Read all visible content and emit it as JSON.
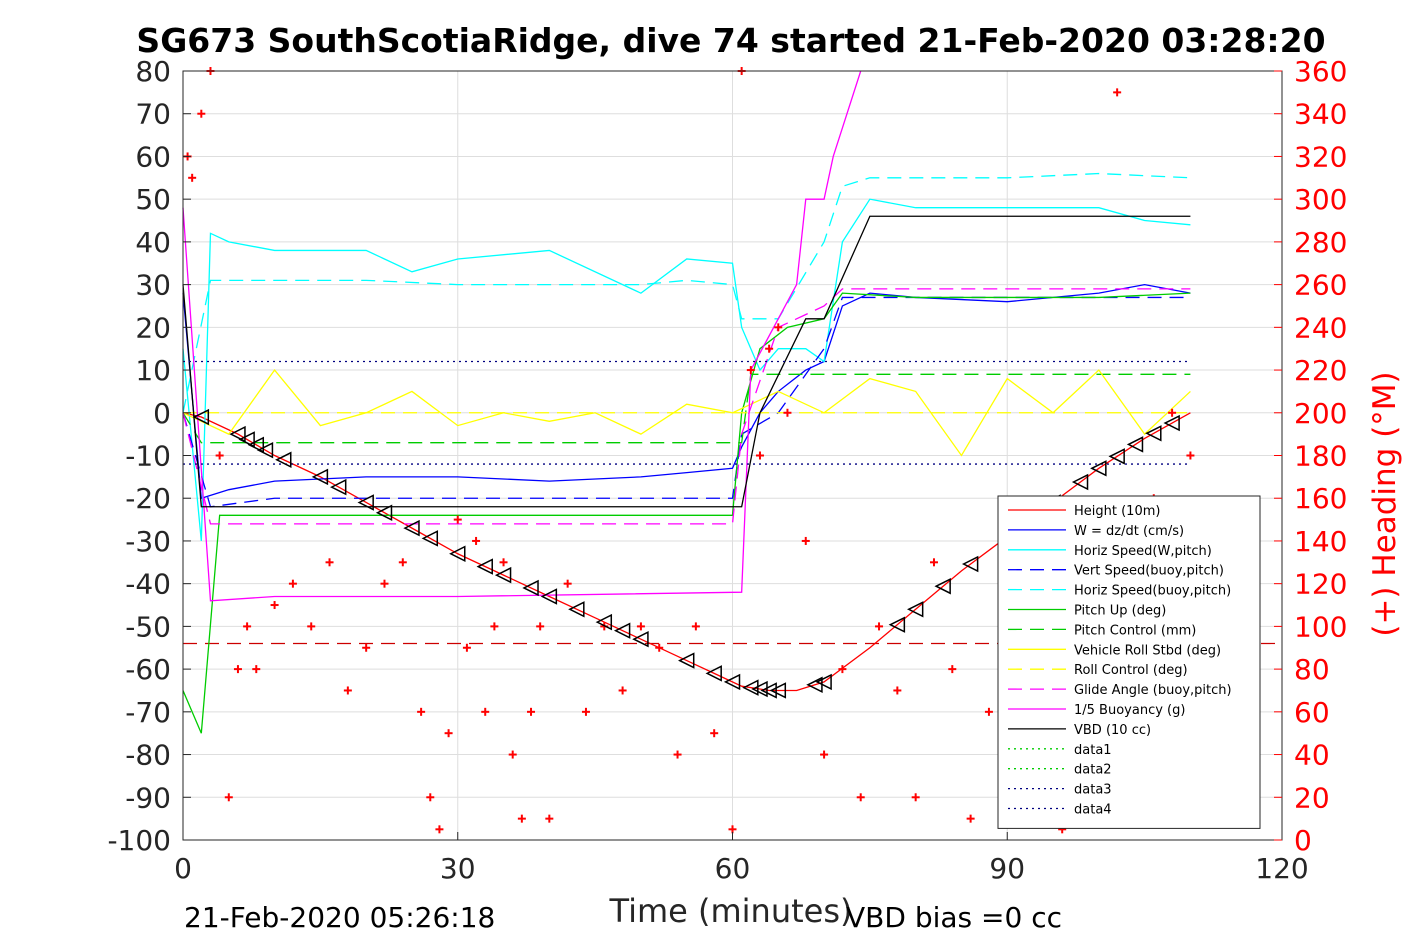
{
  "chart_data": {
    "type": "line",
    "title": "SG673 SouthScotiaRidge, dive 74 started 21-Feb-2020 03:28:20",
    "xlabel": "Time (minutes)",
    "ylabel_right": "(+) Heading (°M)",
    "xlim": [
      0,
      120
    ],
    "ylim_left": [
      -100,
      80
    ],
    "ylim_right": [
      0,
      360
    ],
    "x_ticks": [
      "0",
      "30",
      "60",
      "90",
      "120"
    ],
    "y_ticks_left": [
      "80",
      "70",
      "60",
      "50",
      "40",
      "30",
      "20",
      "10",
      "0",
      "-10",
      "-20",
      "-30",
      "-40",
      "-50",
      "-60",
      "-70",
      "-80",
      "-90",
      "-100"
    ],
    "y_ticks_right": [
      "360",
      "340",
      "320",
      "300",
      "280",
      "260",
      "240",
      "220",
      "200",
      "180",
      "160",
      "140",
      "120",
      "100",
      "80",
      "60",
      "40",
      "20",
      "0"
    ],
    "grid": true,
    "legend_position": "bottom-right",
    "footer_left": "21-Feb-2020 05:26:18",
    "footer_right": "VBD bias =0 cc",
    "series": [
      {
        "name": "Height (10m)",
        "color": "#ff0000",
        "style": "solid",
        "x": [
          0,
          2,
          6,
          10,
          15,
          20,
          25,
          30,
          35,
          40,
          45,
          50,
          55,
          58,
          61,
          64,
          67,
          70,
          75,
          80,
          85,
          90,
          95,
          100,
          105,
          110
        ],
        "y": [
          0,
          -1,
          -5,
          -10,
          -15,
          -21,
          -27,
          -33,
          -38,
          -43,
          -48,
          -53,
          -58,
          -61,
          -64,
          -65,
          -65,
          -63,
          -55,
          -46,
          -37,
          -29,
          -21,
          -13,
          -6,
          0
        ]
      },
      {
        "name": "W = dz/dt (cm/s)",
        "color": "#0000ff",
        "style": "solid",
        "x": [
          0,
          2,
          5,
          10,
          20,
          30,
          40,
          50,
          55,
          60,
          61,
          63,
          65,
          68,
          70,
          72,
          75,
          80,
          90,
          100,
          105,
          110
        ],
        "y": [
          28,
          -20,
          -18,
          -16,
          -15,
          -15,
          -16,
          -15,
          -14,
          -13,
          -8,
          0,
          5,
          10,
          12,
          25,
          28,
          27,
          26,
          28,
          30,
          28
        ]
      },
      {
        "name": "Horiz Speed(W,pitch)",
        "color": "#00ffff",
        "style": "solid",
        "x": [
          0,
          2,
          3,
          5,
          10,
          20,
          25,
          30,
          40,
          50,
          55,
          60,
          61,
          63,
          65,
          68,
          70,
          72,
          75,
          80,
          90,
          100,
          105,
          110
        ],
        "y": [
          15,
          -30,
          42,
          40,
          38,
          38,
          33,
          36,
          38,
          28,
          36,
          35,
          20,
          10,
          15,
          15,
          12,
          40,
          50,
          48,
          48,
          48,
          45,
          44
        ]
      },
      {
        "name": "Vert Speed(buoy,pitch)",
        "color": "#0000ff",
        "style": "dashed",
        "x": [
          0,
          3,
          10,
          30,
          60,
          61,
          65,
          70,
          72,
          110
        ],
        "y": [
          0,
          -22,
          -20,
          -20,
          -20,
          -5,
          0,
          15,
          27,
          27
        ]
      },
      {
        "name": "Horiz Speed(buoy,pitch)",
        "color": "#00ffff",
        "style": "dashed",
        "x": [
          0,
          3,
          5,
          20,
          30,
          40,
          50,
          55,
          60,
          61,
          65,
          70,
          72,
          75,
          80,
          90,
          100,
          110
        ],
        "y": [
          0,
          31,
          31,
          31,
          30,
          30,
          30,
          31,
          30,
          22,
          22,
          40,
          53,
          55,
          55,
          55,
          56,
          55
        ]
      },
      {
        "name": "Pitch Up (deg)",
        "color": "#00cc00",
        "style": "solid",
        "x": [
          0,
          2,
          4,
          10,
          20,
          30,
          40,
          50,
          60,
          61,
          63,
          66,
          70,
          72,
          80,
          90,
          100,
          110
        ],
        "y": [
          -65,
          -75,
          -24,
          -24,
          -24,
          -24,
          -24,
          -24,
          -24,
          0,
          15,
          20,
          22,
          28,
          27,
          27,
          27,
          28
        ]
      },
      {
        "name": "Pitch Control (mm)",
        "color": "#00cc00",
        "style": "dashed",
        "x": [
          0,
          2,
          61,
          62,
          110
        ],
        "y": [
          0,
          -7,
          -7,
          9,
          9
        ]
      },
      {
        "name": "Vehicle Roll Stbd (deg)",
        "color": "#ffff00",
        "style": "solid",
        "x": [
          0,
          5,
          10,
          15,
          20,
          25,
          30,
          35,
          40,
          45,
          50,
          55,
          60,
          65,
          70,
          75,
          80,
          85,
          90,
          95,
          100,
          105,
          110
        ],
        "y": [
          0,
          -5,
          10,
          -3,
          0,
          5,
          -3,
          0,
          -2,
          0,
          -5,
          2,
          0,
          5,
          0,
          8,
          5,
          -10,
          8,
          0,
          10,
          -5,
          5
        ]
      },
      {
        "name": "Roll Control (deg)",
        "color": "#ffff00",
        "style": "dashed",
        "x": [
          0,
          110
        ],
        "y": [
          0,
          0
        ]
      },
      {
        "name": "Glide Angle (buoy,pitch)",
        "color": "#ff00ff",
        "style": "dashed",
        "x": [
          0,
          3,
          10,
          30,
          60,
          61,
          65,
          70,
          72,
          110
        ],
        "y": [
          0,
          -26,
          -26,
          -26,
          -26,
          -5,
          20,
          25,
          29,
          29
        ]
      },
      {
        "name": "1/5 Buoyancy (g)",
        "color": "#ff00ff",
        "style": "solid",
        "x": [
          0,
          3,
          10,
          30,
          61,
          62,
          67,
          68,
          70,
          71,
          74
        ],
        "y": [
          48,
          -44,
          -43,
          -43,
          -42,
          10,
          30,
          50,
          50,
          60,
          80
        ]
      },
      {
        "name": "VBD (10 cc)",
        "color": "#000000",
        "style": "solid",
        "x": [
          0,
          2,
          61,
          63,
          68,
          70,
          75,
          110
        ],
        "y": [
          30,
          -22,
          -22,
          0,
          22,
          22,
          46,
          46
        ]
      },
      {
        "name": "data1",
        "color": "#00cc00",
        "style": "dotted",
        "x": [],
        "y": []
      },
      {
        "name": "data2",
        "color": "#00cc00",
        "style": "dotted",
        "x": [],
        "y": []
      },
      {
        "name": "data3",
        "color": "#000080",
        "style": "dotted",
        "x": [
          0,
          110
        ],
        "y": [
          12,
          12
        ]
      },
      {
        "name": "data4",
        "color": "#000080",
        "style": "dotted",
        "x": [
          0,
          110
        ],
        "y": [
          -12,
          -12
        ]
      }
    ],
    "extra_lines": [
      {
        "color": "#cc0000",
        "style": "dashed",
        "x": [
          0,
          120
        ],
        "y": [
          -54,
          -54
        ]
      }
    ],
    "heading": {
      "color": "#ff0000",
      "marker": "+",
      "axis": "right",
      "x": [
        0.5,
        1,
        2,
        3,
        4,
        5,
        6,
        7,
        8,
        10,
        12,
        14,
        16,
        18,
        20,
        22,
        24,
        26,
        27,
        28,
        29,
        30,
        31,
        32,
        33,
        34,
        35,
        36,
        37,
        38,
        39,
        40,
        42,
        44,
        46,
        48,
        50,
        52,
        54,
        56,
        58,
        60,
        61,
        62,
        63,
        64,
        65,
        66,
        68,
        70,
        72,
        74,
        76,
        78,
        80,
        82,
        84,
        86,
        88,
        90,
        92,
        94,
        96,
        98,
        100,
        102,
        104,
        106,
        108,
        110
      ],
      "y": [
        320,
        310,
        340,
        360,
        180,
        20,
        80,
        100,
        80,
        110,
        120,
        100,
        130,
        70,
        90,
        120,
        130,
        60,
        20,
        5,
        50,
        150,
        90,
        140,
        60,
        100,
        130,
        40,
        10,
        60,
        100,
        10,
        120,
        60,
        100,
        70,
        100,
        90,
        40,
        100,
        50,
        5,
        360,
        220,
        180,
        230,
        240,
        200,
        140,
        40,
        80,
        20,
        100,
        70,
        20,
        130,
        80,
        10,
        60,
        150,
        100,
        30,
        5,
        40,
        10,
        350,
        20,
        160,
        200,
        180
      ]
    },
    "markers": {
      "color": "#000000",
      "marker": "triangle-left",
      "series": "Height (10m)",
      "x": [
        2,
        6,
        7,
        8,
        9,
        11,
        15,
        17,
        20,
        22,
        25,
        27,
        30,
        33,
        35,
        38,
        40,
        43,
        46,
        48,
        50,
        55,
        58,
        60,
        62,
        63,
        64,
        65,
        69,
        70,
        78,
        80,
        83,
        86,
        91,
        95,
        98,
        100,
        102,
        104,
        106,
        108
      ]
    }
  }
}
